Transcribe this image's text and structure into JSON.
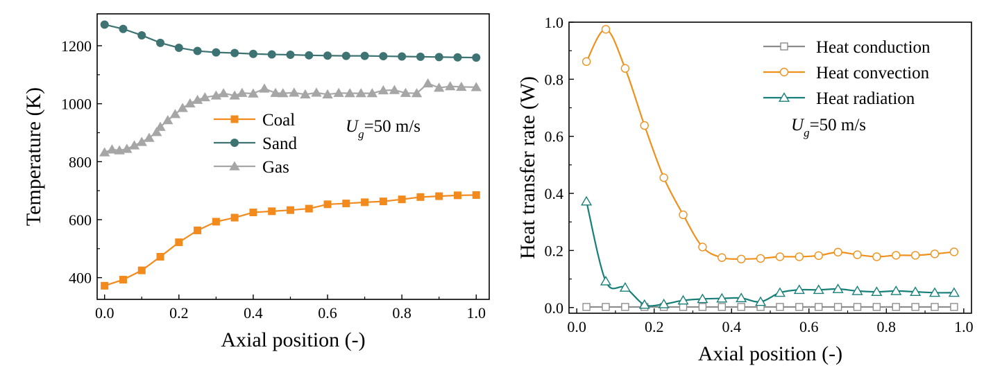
{
  "chart_data": [
    {
      "type": "line",
      "xlabel": "Axial position (-)",
      "ylabel": "Temperature (K)",
      "xlim": [
        -0.02,
        1.035
      ],
      "ylim": [
        325,
        1310
      ],
      "xticks": [
        0.0,
        0.2,
        0.4,
        0.6,
        0.8,
        1.0
      ],
      "yticks": [
        400,
        600,
        800,
        1000,
        1200
      ],
      "xtick_labels": [
        "0.0",
        "0.2",
        "0.4",
        "0.6",
        "0.8",
        "1.0"
      ],
      "ytick_labels": [
        "400",
        "600",
        "800",
        "1000",
        "1200"
      ],
      "legend_position": "center",
      "annotation": {
        "main": "U",
        "sub": "g",
        "rest": "=50 m/s"
      },
      "series": [
        {
          "name": "Coal",
          "color": "#f28a1e",
          "marker": "square-filled",
          "line": "straight",
          "x": [
            0.0,
            0.05,
            0.1,
            0.15,
            0.2,
            0.25,
            0.3,
            0.35,
            0.4,
            0.45,
            0.5,
            0.55,
            0.6,
            0.65,
            0.7,
            0.75,
            0.8,
            0.85,
            0.9,
            0.95,
            1.0
          ],
          "y": [
            372,
            393,
            425,
            472,
            522,
            563,
            593,
            607,
            625,
            629,
            633,
            638,
            653,
            656,
            660,
            663,
            670,
            678,
            681,
            684,
            685
          ]
        },
        {
          "name": "Sand",
          "color": "#3d7372",
          "marker": "circle-filled",
          "line": "straight",
          "x": [
            0.0,
            0.05,
            0.1,
            0.15,
            0.2,
            0.25,
            0.3,
            0.35,
            0.4,
            0.45,
            0.5,
            0.55,
            0.6,
            0.65,
            0.7,
            0.75,
            0.8,
            0.85,
            0.9,
            0.95,
            1.0
          ],
          "y": [
            1273,
            1258,
            1236,
            1210,
            1193,
            1182,
            1177,
            1175,
            1172,
            1170,
            1169,
            1167,
            1166,
            1165,
            1165,
            1164,
            1163,
            1162,
            1161,
            1160,
            1159
          ]
        },
        {
          "name": "Gas",
          "color": "#a6a6a6",
          "marker": "triangle-filled",
          "line": "straight",
          "x": [
            0.0,
            0.02,
            0.04,
            0.06,
            0.08,
            0.1,
            0.12,
            0.14,
            0.15,
            0.17,
            0.19,
            0.21,
            0.23,
            0.25,
            0.27,
            0.3,
            0.32,
            0.35,
            0.37,
            0.4,
            0.43,
            0.46,
            0.48,
            0.51,
            0.54,
            0.57,
            0.6,
            0.63,
            0.66,
            0.69,
            0.72,
            0.75,
            0.78,
            0.81,
            0.84,
            0.87,
            0.9,
            0.93,
            0.96,
            1.0
          ],
          "y": [
            832,
            842,
            839,
            844,
            856,
            868,
            882,
            902,
            920,
            943,
            964,
            985,
            1001,
            1013,
            1022,
            1028,
            1036,
            1028,
            1037,
            1035,
            1052,
            1037,
            1036,
            1038,
            1032,
            1038,
            1032,
            1037,
            1036,
            1036,
            1036,
            1046,
            1047,
            1037,
            1036,
            1070,
            1055,
            1060,
            1058,
            1057
          ]
        }
      ]
    },
    {
      "type": "line",
      "xlabel": "Axial position (-)",
      "ylabel": "Heat transfer rate (W)",
      "xlim": [
        -0.02,
        1.02
      ],
      "ylim": [
        -0.02,
        1.0
      ],
      "xticks": [
        0.0,
        0.2,
        0.4,
        0.6,
        0.8,
        1.0
      ],
      "yticks": [
        0.0,
        0.2,
        0.4,
        0.6,
        0.8,
        1.0
      ],
      "xtick_labels": [
        "0.0",
        "0.2",
        "0.4",
        "0.6",
        "0.8",
        "1.0"
      ],
      "ytick_labels": [
        "0.0",
        "0.2",
        "0.4",
        "0.6",
        "0.8",
        "1.0"
      ],
      "legend_position": "top-right",
      "annotation": {
        "main": "U",
        "sub": "g",
        "rest": "=50 m/s"
      },
      "series": [
        {
          "name": "Heat conduction",
          "color": "#8c8c8c",
          "marker": "square-open",
          "line": "smooth",
          "x": [
            0.025,
            0.075,
            0.125,
            0.175,
            0.225,
            0.275,
            0.325,
            0.375,
            0.425,
            0.475,
            0.525,
            0.575,
            0.625,
            0.675,
            0.725,
            0.775,
            0.825,
            0.875,
            0.925,
            0.975
          ],
          "y": [
            0.002,
            0.002,
            0.002,
            0.002,
            0.002,
            0.002,
            0.002,
            0.002,
            0.002,
            0.002,
            0.002,
            0.002,
            0.002,
            0.002,
            0.002,
            0.002,
            0.002,
            0.002,
            0.002,
            0.002
          ]
        },
        {
          "name": "Heat convection",
          "color": "#f0901c",
          "marker": "circle-open",
          "line": "smooth",
          "x": [
            0.025,
            0.075,
            0.125,
            0.175,
            0.225,
            0.275,
            0.325,
            0.375,
            0.425,
            0.475,
            0.525,
            0.575,
            0.625,
            0.675,
            0.725,
            0.775,
            0.825,
            0.875,
            0.925,
            0.975
          ],
          "y": [
            0.862,
            0.975,
            0.838,
            0.638,
            0.455,
            0.325,
            0.212,
            0.175,
            0.17,
            0.172,
            0.178,
            0.178,
            0.182,
            0.194,
            0.185,
            0.178,
            0.183,
            0.183,
            0.188,
            0.195
          ]
        },
        {
          "name": "Heat radiation",
          "color": "#177f78",
          "marker": "triangle-open",
          "line": "smooth",
          "x": [
            0.025,
            0.075,
            0.125,
            0.175,
            0.225,
            0.275,
            0.325,
            0.375,
            0.425,
            0.475,
            0.525,
            0.575,
            0.625,
            0.675,
            0.725,
            0.775,
            0.825,
            0.875,
            0.925,
            0.975
          ],
          "y": [
            0.372,
            0.092,
            0.07,
            0.01,
            0.012,
            0.025,
            0.03,
            0.032,
            0.033,
            0.02,
            0.052,
            0.062,
            0.062,
            0.065,
            0.058,
            0.055,
            0.058,
            0.055,
            0.052,
            0.052
          ]
        }
      ]
    }
  ]
}
